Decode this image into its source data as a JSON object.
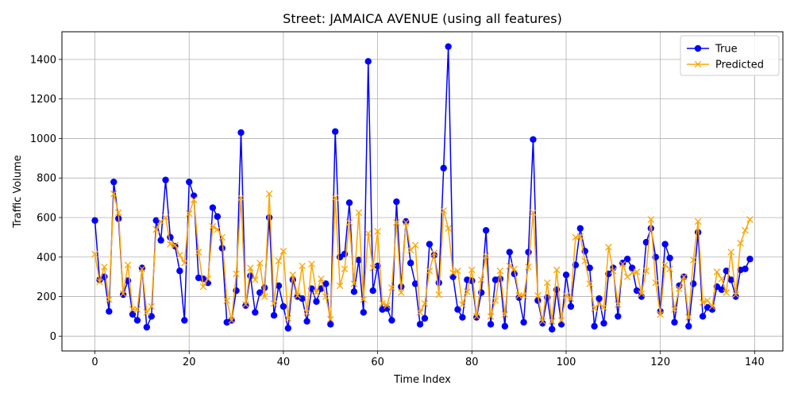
{
  "chart_data": {
    "type": "line",
    "title": "Street: JAMAICA AVENUE (using all features)",
    "xlabel": "Time Index",
    "ylabel": "Traffic Volume",
    "xlim": [
      -7,
      146
    ],
    "ylim": [
      -75,
      1540
    ],
    "xticks": [
      0,
      20,
      40,
      60,
      80,
      100,
      120,
      140
    ],
    "yticks": [
      0,
      200,
      400,
      600,
      800,
      1000,
      1200,
      1400
    ],
    "grid": true,
    "legend_position": "top-right",
    "series": [
      {
        "name": "True",
        "color": "#0000ff",
        "marker": "circle",
        "values": [
          585,
          285,
          300,
          125,
          780,
          595,
          210,
          280,
          110,
          80,
          345,
          45,
          100,
          585,
          485,
          790,
          500,
          455,
          330,
          80,
          780,
          710,
          295,
          290,
          270,
          650,
          605,
          445,
          70,
          80,
          230,
          1030,
          155,
          305,
          120,
          220,
          245,
          600,
          105,
          255,
          150,
          40,
          285,
          200,
          190,
          75,
          240,
          175,
          240,
          265,
          60,
          1035,
          400,
          415,
          675,
          225,
          385,
          120,
          1390,
          230,
          355,
          135,
          140,
          80,
          680,
          250,
          580,
          370,
          265,
          60,
          90,
          465,
          410,
          270,
          850,
          1465,
          300,
          135,
          95,
          285,
          280,
          95,
          220,
          535,
          60,
          285,
          290,
          50,
          425,
          315,
          195,
          70,
          425,
          995,
          180,
          65,
          195,
          35,
          235,
          60,
          310,
          150,
          360,
          545,
          430,
          345,
          50,
          190,
          65,
          315,
          345,
          100,
          370,
          390,
          345,
          230,
          200,
          475,
          545,
          400,
          125,
          465,
          395,
          70,
          255,
          300,
          50,
          265,
          525,
          100,
          145,
          135,
          250,
          235,
          330,
          285,
          200,
          335,
          340,
          390
        ]
      },
      {
        "name": "Predicted",
        "color": "#ffa500",
        "marker": "x",
        "values": [
          415,
          275,
          350,
          185,
          720,
          625,
          215,
          360,
          135,
          135,
          340,
          120,
          150,
          540,
          580,
          600,
          465,
          460,
          410,
          370,
          620,
          690,
          425,
          250,
          290,
          555,
          540,
          500,
          180,
          80,
          315,
          700,
          160,
          345,
          285,
          370,
          200,
          720,
          165,
          380,
          430,
          90,
          310,
          205,
          355,
          120,
          365,
          220,
          290,
          200,
          85,
          700,
          255,
          340,
          575,
          265,
          625,
          185,
          520,
          345,
          530,
          165,
          155,
          245,
          575,
          220,
          575,
          435,
          460,
          120,
          165,
          330,
          420,
          210,
          635,
          545,
          320,
          330,
          160,
          225,
          335,
          100,
          285,
          405,
          100,
          180,
          330,
          110,
          355,
          340,
          205,
          205,
          350,
          625,
          205,
          75,
          270,
          75,
          335,
          80,
          205,
          190,
          500,
          505,
          380,
          265,
          140,
          165,
          145,
          450,
          330,
          160,
          365,
          300,
          320,
          325,
          215,
          330,
          590,
          270,
          110,
          360,
          340,
          135,
          240,
          300,
          95,
          385,
          580,
          170,
          180,
          150,
          325,
          290,
          220,
          425,
          210,
          470,
          535,
          590
        ]
      }
    ]
  }
}
